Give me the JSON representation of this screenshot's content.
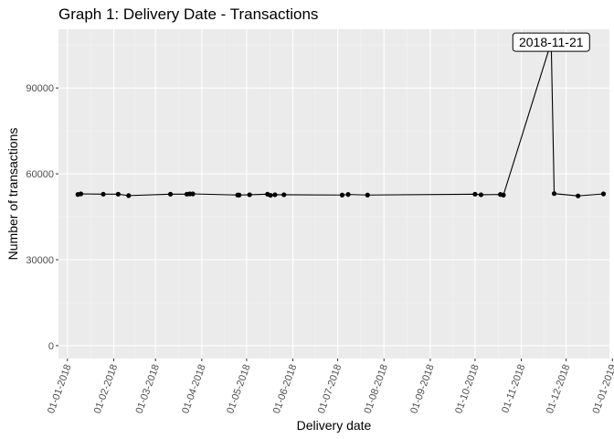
{
  "chart_data": {
    "type": "line",
    "title": "Graph 1: Delivery Date - Transactions",
    "xlabel": "Delivery date",
    "ylabel": "Number of transactions",
    "x_axis_type": "date",
    "xlim": [
      "2017-12-26",
      "2018-12-30"
    ],
    "ylim": [
      -4500,
      110500
    ],
    "y_ticks": [
      0,
      30000,
      60000,
      90000
    ],
    "y_tick_labels": [
      "0",
      "30000",
      "60000",
      "90000"
    ],
    "x_ticks": [
      "2018-01-01",
      "2018-02-01",
      "2018-03-01",
      "2018-04-01",
      "2018-05-01",
      "2018-06-01",
      "2018-07-01",
      "2018-08-01",
      "2018-09-01",
      "2018-10-01",
      "2018-11-01",
      "2018-12-01",
      "2019-01-01"
    ],
    "x_tick_labels": [
      "01-01-2018",
      "01-02-2018",
      "01-03-2018",
      "01-04-2018",
      "01-05-2018",
      "01-06-2018",
      "01-07-2018",
      "01-08-2018",
      "01-09-2018",
      "01-10-2018",
      "01-11-2018",
      "01-12-2018",
      "01-01-2019"
    ],
    "grid": true,
    "legend": "none",
    "colors": {
      "panel": "#ebebeb",
      "grid_major": "#ffffff",
      "grid_minor": "#f5f5f5",
      "line": "#000000",
      "point": "#000000",
      "tick_text": "#4d4d4d"
    },
    "series": [
      {
        "x": [
          "2018-01-08",
          "2018-01-10",
          "2018-01-25",
          "2018-02-04",
          "2018-02-11",
          "2018-03-11",
          "2018-03-22",
          "2018-03-24",
          "2018-03-26",
          "2018-04-25",
          "2018-04-26",
          "2018-05-03",
          "2018-05-15",
          "2018-05-17",
          "2018-05-20",
          "2018-05-26",
          "2018-07-04",
          "2018-07-08",
          "2018-07-21",
          "2018-10-01",
          "2018-10-05",
          "2018-10-18",
          "2018-10-20",
          "2018-11-21",
          "2018-11-23",
          "2018-12-09",
          "2018-12-26"
        ],
        "values": [
          52800,
          53000,
          52900,
          52900,
          52400,
          52900,
          52900,
          53000,
          53000,
          52600,
          52600,
          52700,
          52900,
          52500,
          52700,
          52700,
          52600,
          52800,
          52600,
          52900,
          52700,
          52800,
          52600,
          106000,
          53100,
          52300,
          53000
        ]
      }
    ],
    "annotations": [
      {
        "x": "2018-11-21",
        "y": 106000,
        "text": "2018-11-21"
      }
    ]
  }
}
